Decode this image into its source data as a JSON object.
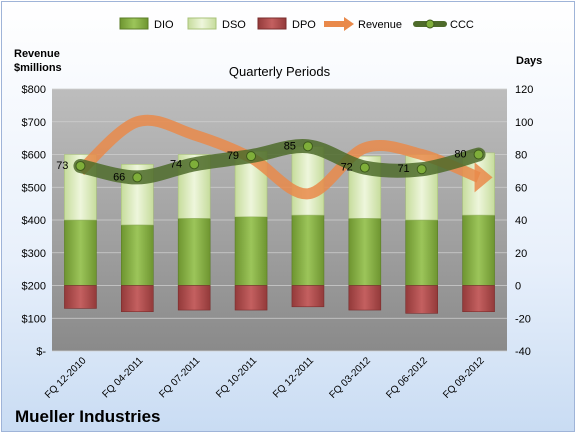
{
  "company": "Mueller Industries",
  "colors": {
    "dio": "#7fa83b",
    "dso": "#d6e8b4",
    "dpo": "#b04a4a",
    "revenue": "#e9894a",
    "ccc": "#4e6b2a"
  },
  "chart_data": {
    "type": "bar",
    "title": "Quarterly Periods",
    "y_left_label": [
      "Revenue",
      "$millions"
    ],
    "y_right_label": "Days",
    "y_left_ticks": [
      "$-",
      "$100",
      "$200",
      "$300",
      "$400",
      "$500",
      "$600",
      "$700",
      "$800"
    ],
    "y_left_range": [
      0,
      800
    ],
    "y_right_ticks": [
      "-40",
      "-20",
      "0",
      "20",
      "40",
      "60",
      "80",
      "100",
      "120"
    ],
    "y_right_range": [
      -40,
      120
    ],
    "categories": [
      "FQ 12-2010",
      "FQ 04-2011",
      "FQ 07-2011",
      "FQ 10-2011",
      "FQ 12-2011",
      "FQ 03-2012",
      "FQ 06-2012",
      "FQ 09-2012"
    ],
    "legend": [
      "DIO",
      "DSO",
      "DPO",
      "Revenue",
      "CCC"
    ],
    "series": [
      {
        "name": "DIO",
        "axis": "right",
        "values": [
          40,
          37,
          41,
          42,
          43,
          41,
          40,
          43
        ]
      },
      {
        "name": "DSO",
        "axis": "right",
        "values": [
          40,
          37,
          39,
          40,
          42,
          38,
          40,
          38
        ]
      },
      {
        "name": "DPO",
        "axis": "right",
        "values": [
          -14,
          -16,
          -15,
          -15,
          -13,
          -15,
          -17,
          -16
        ]
      },
      {
        "name": "Revenue",
        "axis": "left",
        "values": [
          550,
          700,
          660,
          590,
          480,
          620,
          600,
          530
        ]
      },
      {
        "name": "CCC",
        "axis": "right",
        "values": [
          73,
          66,
          74,
          79,
          85,
          72,
          71,
          80
        ]
      }
    ],
    "ccc_labels": [
      "73",
      "66",
      "74",
      "79",
      "85",
      "72",
      "71",
      "80"
    ]
  }
}
